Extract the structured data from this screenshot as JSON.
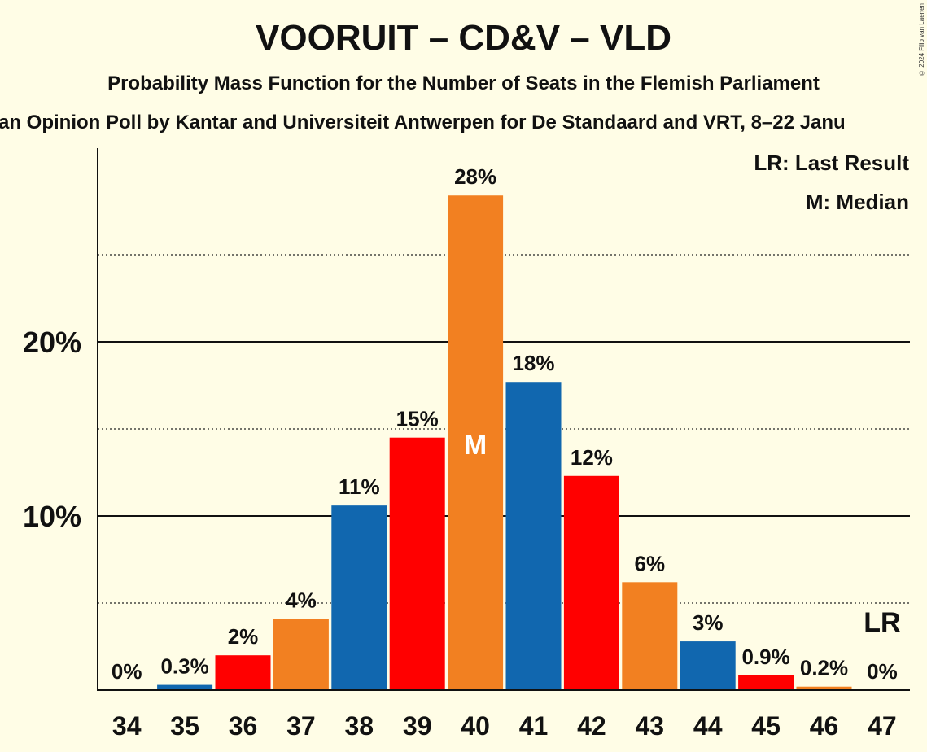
{
  "chart_data": {
    "type": "bar",
    "title": "VOORUIT – CD&V – VLD",
    "subtitle": "Probability Mass Function for the Number of Seats in the Flemish Parliament",
    "source": "an Opinion Poll by Kantar and Universiteit Antwerpen for De Standaard and VRT, 8–22 Janu",
    "copyright": "© 2024 Filip van Laenen",
    "xlabel": "",
    "ylabel": "",
    "ylim": [
      0,
      31
    ],
    "y_ticks": [
      {
        "value": 10,
        "label": "10%"
      },
      {
        "value": 20,
        "label": "20%"
      }
    ],
    "dotted_gridlines": [
      5,
      15,
      25
    ],
    "categories": [
      "34",
      "35",
      "36",
      "37",
      "38",
      "39",
      "40",
      "41",
      "42",
      "43",
      "44",
      "45",
      "46",
      "47"
    ],
    "values": [
      0,
      0.3,
      2.0,
      4.1,
      10.6,
      14.5,
      28.4,
      17.7,
      12.3,
      6.2,
      2.8,
      0.85,
      0.2,
      0
    ],
    "labels": [
      "0%",
      "0.3%",
      "2%",
      "4%",
      "11%",
      "15%",
      "28%",
      "18%",
      "12%",
      "6%",
      "3%",
      "0.9%",
      "0.2%",
      "0%"
    ],
    "colors": [
      "#1167AF",
      "#1167AF",
      "#FF0000",
      "#F28021",
      "#1167AF",
      "#FF0000",
      "#F28021",
      "#1167AF",
      "#FF0000",
      "#F28021",
      "#1167AF",
      "#FF0000",
      "#F28021",
      "#1167AF"
    ],
    "median_index": 6,
    "median_marker": "M",
    "last_result_index": 13,
    "last_result_marker": "LR",
    "legend": {
      "position": "top-right",
      "items": [
        "LR: Last Result",
        "M: Median"
      ]
    }
  }
}
